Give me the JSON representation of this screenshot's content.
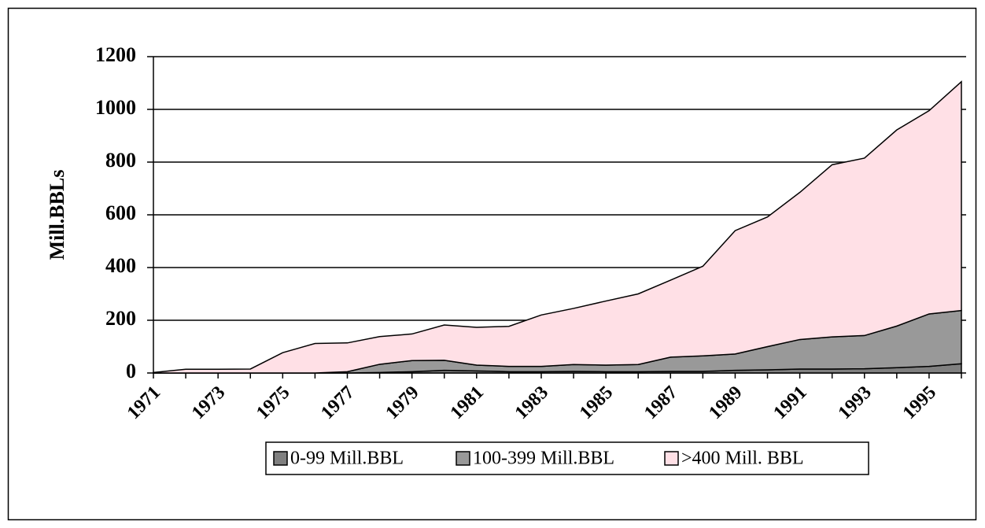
{
  "chart_data": {
    "type": "stacked-area",
    "y_label": "Mill.BBLs",
    "categories": [
      "1971",
      null,
      "1973",
      null,
      "1975",
      null,
      "1977",
      null,
      "1979",
      null,
      "1981",
      null,
      "1983",
      null,
      "1985",
      null,
      "1987",
      null,
      "1989",
      null,
      "1991",
      null,
      "1993",
      null,
      "1995",
      null
    ],
    "series": [
      {
        "name": "0-99 Mill.BBL",
        "color": "#808080",
        "values": [
          0,
          0,
          0,
          0,
          0,
          0,
          0,
          2,
          5,
          10,
          8,
          5,
          5,
          6,
          5,
          5,
          6,
          6,
          10,
          12,
          15,
          15,
          16,
          20,
          25,
          35
        ]
      },
      {
        "name": "100-399 Mill.BBL",
        "color": "#999999",
        "values": [
          0,
          0,
          0,
          0,
          0,
          0,
          5,
          31,
          42,
          38,
          22,
          20,
          20,
          26,
          25,
          27,
          54,
          59,
          62,
          88,
          112,
          122,
          126,
          158,
          199,
          202
        ]
      },
      {
        "name": ">400 Mill. BBL",
        "color": "#ffe0e6",
        "values": [
          2,
          14,
          14,
          15,
          77,
          112,
          109,
          105,
          101,
          134,
          143,
          152,
          195,
          213,
          243,
          268,
          292,
          340,
          468,
          492,
          558,
          653,
          673,
          744,
          771,
          868
        ]
      }
    ],
    "ylim": [
      0,
      1200
    ],
    "yticks": [
      0,
      200,
      400,
      600,
      800,
      1000,
      1200
    ],
    "grid": true,
    "legend": "bottom"
  }
}
